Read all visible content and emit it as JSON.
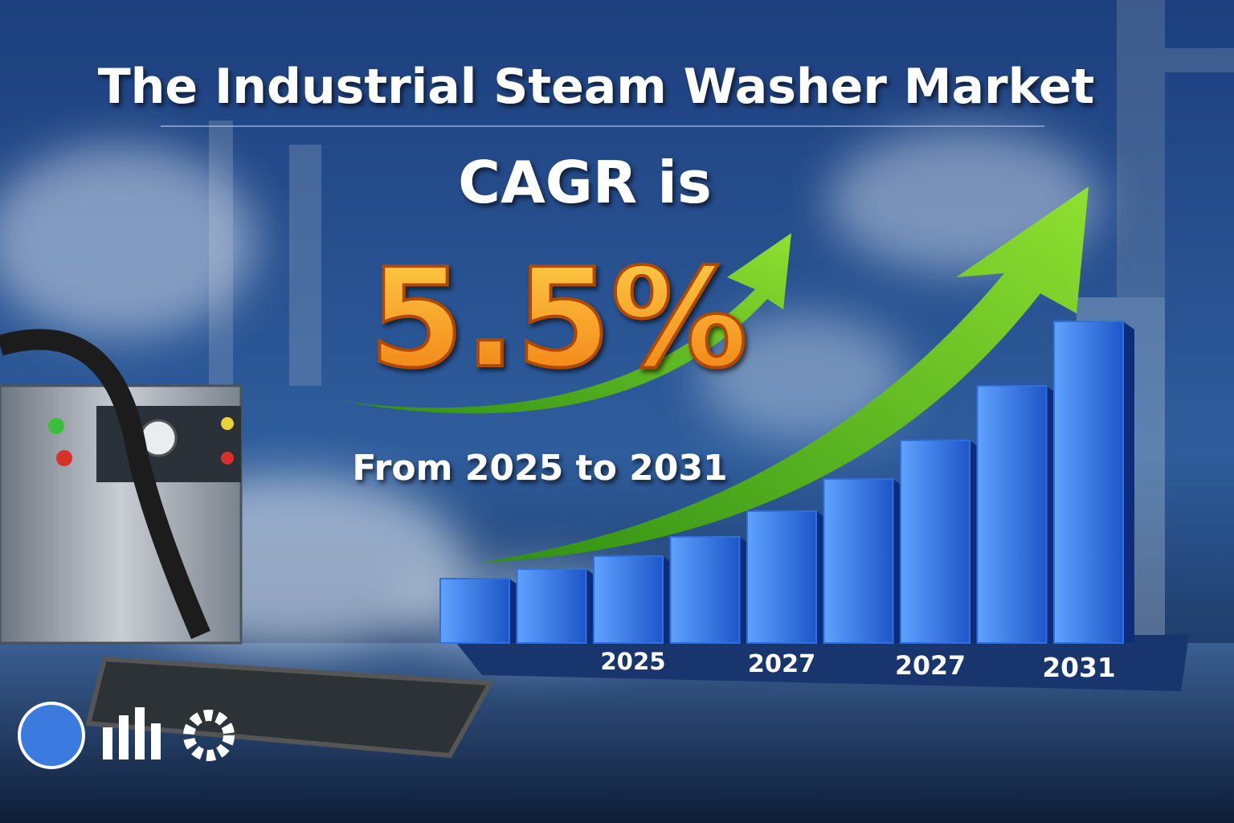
{
  "chart_data": {
    "type": "bar",
    "title": "The Industrial Steam Washer Market",
    "annotations": [
      "CAGR is",
      "5.5%",
      "From 2025 to 2031"
    ],
    "categories": [
      null,
      null,
      "2025",
      null,
      "2027",
      null,
      "2027",
      null,
      "2031"
    ],
    "values": [
      20,
      23,
      27,
      33,
      41,
      51,
      63,
      80,
      100
    ],
    "color": "#2f6fe0",
    "ylim": [
      0,
      100
    ]
  }
}
